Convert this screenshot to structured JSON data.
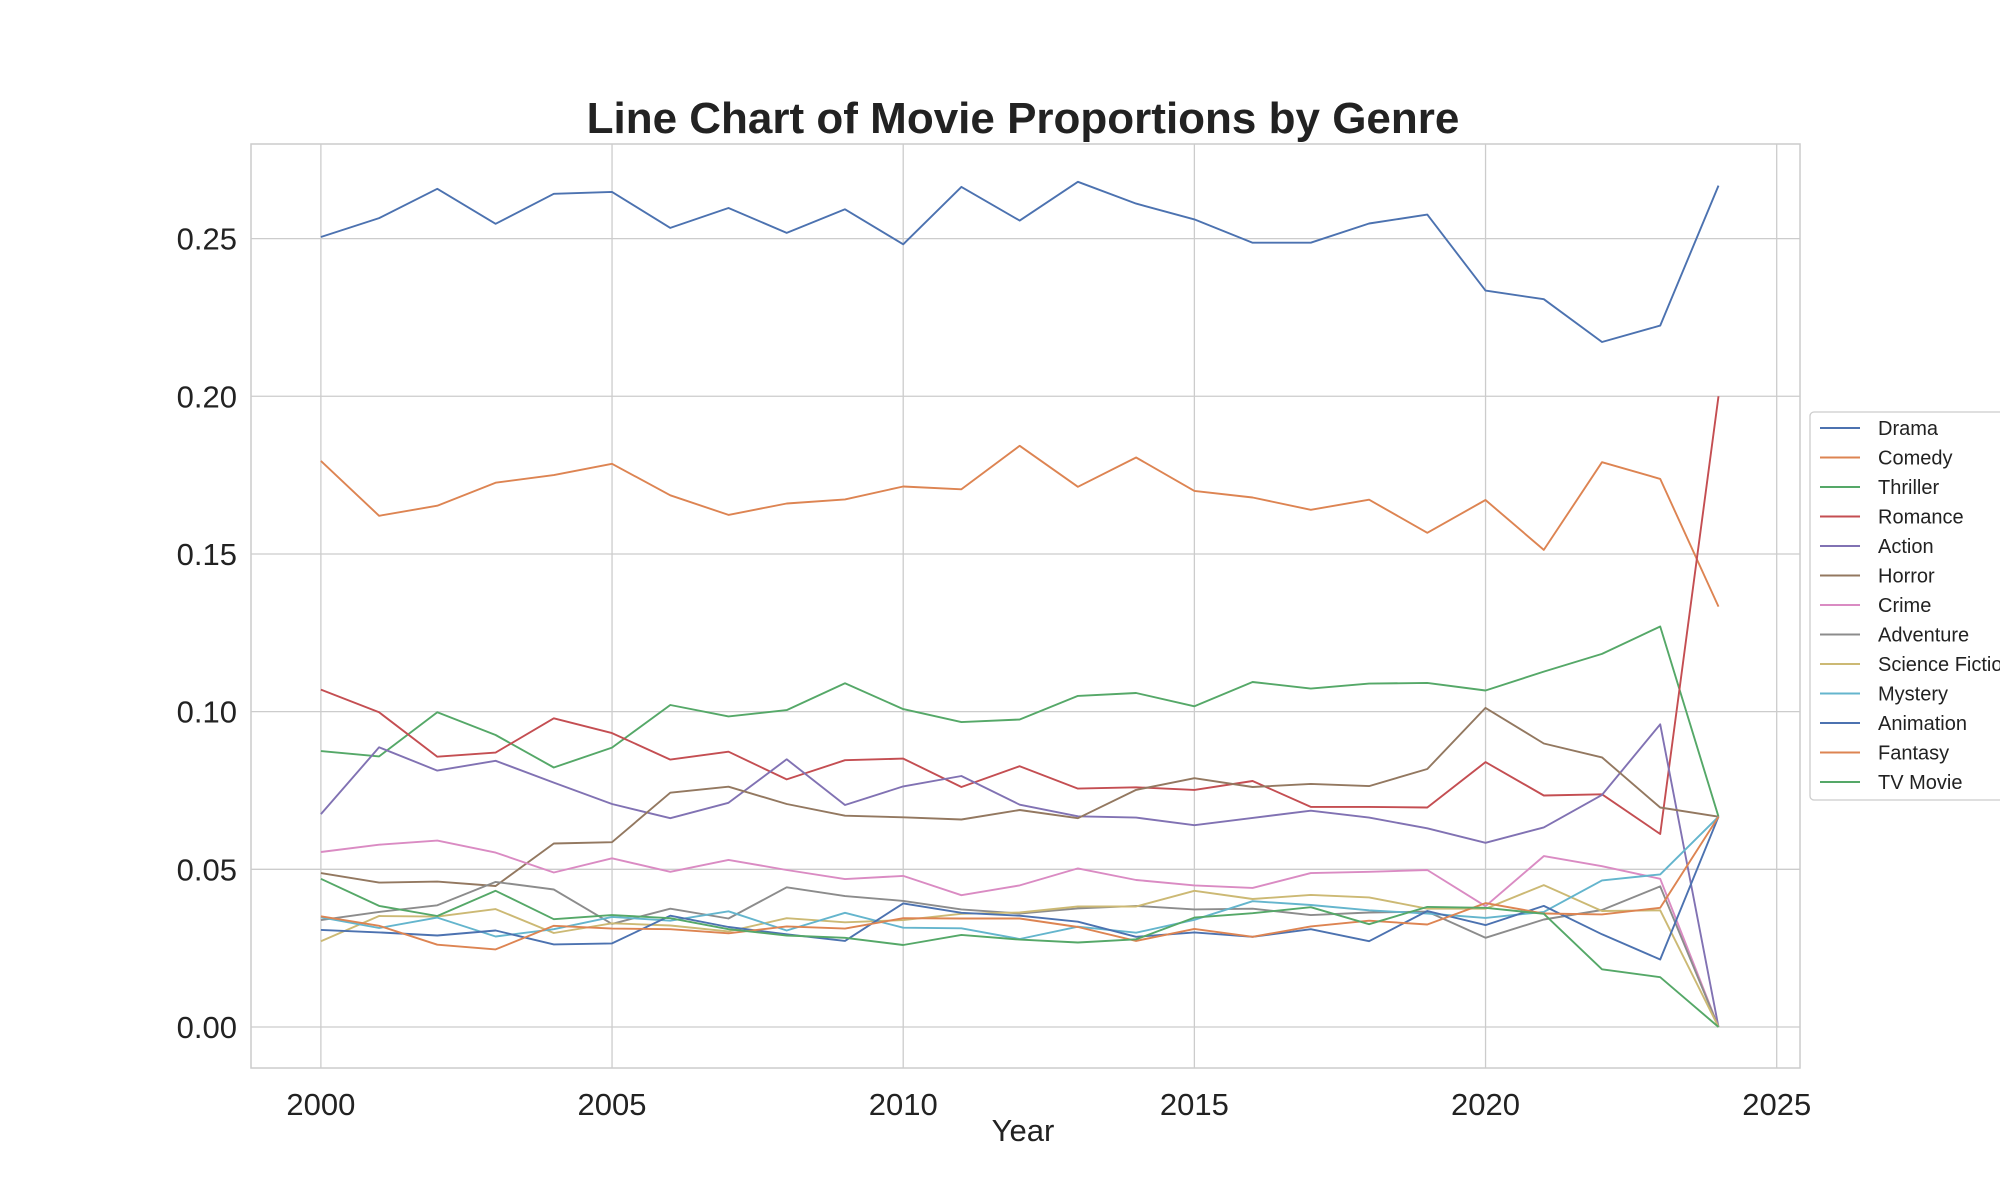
{
  "chart_data": {
    "type": "line",
    "title": "Line Chart of Movie Proportions by Genre",
    "xlabel": "Year",
    "ylabel": "",
    "xlim": [
      1998.8,
      2025.4
    ],
    "ylim": [
      -0.013,
      0.28
    ],
    "xticks": [
      2000,
      2005,
      2010,
      2015,
      2020,
      2025
    ],
    "xtick_labels": [
      "2000",
      "2005",
      "2010",
      "2015",
      "2020",
      "2025"
    ],
    "yticks": [
      0.0,
      0.05,
      0.1,
      0.15,
      0.2,
      0.25
    ],
    "ytick_labels": [
      "0.00",
      "0.05",
      "0.10",
      "0.15",
      "0.20",
      "0.25"
    ],
    "grid": true,
    "legend_position": "right-outside",
    "x": [
      2000,
      2001,
      2002,
      2003,
      2004,
      2005,
      2006,
      2007,
      2008,
      2009,
      2010,
      2011,
      2012,
      2013,
      2014,
      2015,
      2016,
      2017,
      2018,
      2019,
      2020,
      2021,
      2022,
      2023,
      2024
    ],
    "series": [
      {
        "name": "Drama",
        "color": "#4c72b0",
        "values": [
          0.2505,
          0.2565,
          0.2658,
          0.2547,
          0.2642,
          0.2648,
          0.2534,
          0.2597,
          0.2518,
          0.2593,
          0.2482,
          0.2664,
          0.2557,
          0.268,
          0.2611,
          0.2561,
          0.2487,
          0.2487,
          0.2548,
          0.2576,
          0.2335,
          0.2308,
          0.2172,
          0.2224,
          0.2668
        ]
      },
      {
        "name": "Comedy",
        "color": "#dd8452",
        "values": [
          0.1795,
          0.1621,
          0.1653,
          0.1726,
          0.175,
          0.1786,
          0.1686,
          0.1624,
          0.166,
          0.1673,
          0.1714,
          0.1705,
          0.1843,
          0.1713,
          0.1806,
          0.17,
          0.1679,
          0.164,
          0.1672,
          0.1567,
          0.1671,
          0.1513,
          0.1791,
          0.1738,
          0.1333
        ]
      },
      {
        "name": "Thriller",
        "color": "#55a868",
        "values": [
          0.0875,
          0.0858,
          0.0998,
          0.0926,
          0.0823,
          0.0886,
          0.1021,
          0.0985,
          0.1005,
          0.109,
          0.1008,
          0.0967,
          0.0975,
          0.105,
          0.1059,
          0.1017,
          0.1094,
          0.1073,
          0.1089,
          0.1091,
          0.1067,
          0.1127,
          0.1183,
          0.127,
          0.0667
        ]
      },
      {
        "name": "Romance",
        "color": "#c44e52",
        "values": [
          0.107,
          0.0998,
          0.0857,
          0.087,
          0.0979,
          0.0932,
          0.0848,
          0.0873,
          0.0785,
          0.0846,
          0.0851,
          0.0761,
          0.0827,
          0.0756,
          0.076,
          0.0752,
          0.078,
          0.0698,
          0.0698,
          0.0696,
          0.084,
          0.0734,
          0.0738,
          0.0612,
          0.2
        ]
      },
      {
        "name": "Action",
        "color": "#8172b3",
        "values": [
          0.0675,
          0.0887,
          0.0813,
          0.0844,
          0.0775,
          0.0707,
          0.0662,
          0.0711,
          0.0849,
          0.0704,
          0.0763,
          0.0796,
          0.0705,
          0.0668,
          0.0664,
          0.064,
          0.0663,
          0.0686,
          0.0664,
          0.063,
          0.0584,
          0.0633,
          0.0736,
          0.096,
          0.0
        ]
      },
      {
        "name": "Horror",
        "color": "#937860",
        "values": [
          0.0488,
          0.0458,
          0.0461,
          0.0447,
          0.0582,
          0.0586,
          0.0743,
          0.0762,
          0.0707,
          0.067,
          0.0665,
          0.0658,
          0.0688,
          0.0662,
          0.0752,
          0.0789,
          0.0761,
          0.0771,
          0.0764,
          0.0818,
          0.1012,
          0.0899,
          0.0855,
          0.0696,
          0.0667
        ]
      },
      {
        "name": "Crime",
        "color": "#da8bc3",
        "values": [
          0.0555,
          0.0578,
          0.0591,
          0.0553,
          0.049,
          0.0535,
          0.0492,
          0.053,
          0.0498,
          0.0469,
          0.0479,
          0.0418,
          0.0449,
          0.0503,
          0.0466,
          0.0449,
          0.0441,
          0.0488,
          0.0492,
          0.0498,
          0.0383,
          0.0542,
          0.051,
          0.047,
          0.0
        ]
      },
      {
        "name": "Adventure",
        "color": "#8c8c8c",
        "values": [
          0.0339,
          0.0365,
          0.0386,
          0.046,
          0.0436,
          0.0327,
          0.0375,
          0.0344,
          0.0443,
          0.0415,
          0.04,
          0.0373,
          0.036,
          0.0376,
          0.0384,
          0.0373,
          0.0375,
          0.0355,
          0.0363,
          0.0366,
          0.0283,
          0.0341,
          0.0371,
          0.0446,
          0.0
        ]
      },
      {
        "name": "Science Fiction",
        "color": "#ccb974",
        "values": [
          0.0272,
          0.0352,
          0.035,
          0.0374,
          0.0298,
          0.0329,
          0.0322,
          0.0303,
          0.0345,
          0.0332,
          0.0339,
          0.0359,
          0.0363,
          0.0382,
          0.0382,
          0.0432,
          0.0406,
          0.0419,
          0.0411,
          0.0375,
          0.0375,
          0.045,
          0.0368,
          0.037,
          0.0
        ]
      },
      {
        "name": "Mystery",
        "color": "#64b5cd",
        "values": [
          0.0348,
          0.0314,
          0.0347,
          0.0287,
          0.031,
          0.0349,
          0.0337,
          0.0367,
          0.0306,
          0.0362,
          0.0315,
          0.0313,
          0.0279,
          0.0318,
          0.0299,
          0.034,
          0.0399,
          0.0387,
          0.037,
          0.036,
          0.0346,
          0.0365,
          0.0465,
          0.0484,
          0.0667
        ]
      },
      {
        "name": "Animation",
        "color": "#4c72b0",
        "values": [
          0.0308,
          0.03,
          0.029,
          0.0306,
          0.0262,
          0.0265,
          0.0353,
          0.0317,
          0.0294,
          0.0273,
          0.0392,
          0.0362,
          0.0353,
          0.0334,
          0.0286,
          0.03,
          0.0286,
          0.031,
          0.0272,
          0.0368,
          0.0323,
          0.0384,
          0.0294,
          0.0214,
          0.0667
        ]
      },
      {
        "name": "Fantasy",
        "color": "#dd8452",
        "values": [
          0.0351,
          0.0321,
          0.0261,
          0.0246,
          0.0321,
          0.0312,
          0.031,
          0.0297,
          0.0319,
          0.0312,
          0.0345,
          0.0344,
          0.0344,
          0.0317,
          0.0273,
          0.0311,
          0.0286,
          0.0319,
          0.0337,
          0.0325,
          0.0393,
          0.036,
          0.0357,
          0.0378,
          0.0667
        ]
      },
      {
        "name": "TV Movie",
        "color": "#55a868",
        "values": [
          0.047,
          0.0384,
          0.0352,
          0.0432,
          0.0342,
          0.0355,
          0.0345,
          0.031,
          0.029,
          0.0283,
          0.026,
          0.0292,
          0.0277,
          0.0268,
          0.0278,
          0.0347,
          0.0361,
          0.038,
          0.0326,
          0.0381,
          0.0378,
          0.0359,
          0.0183,
          0.0158,
          0.0
        ]
      }
    ]
  }
}
